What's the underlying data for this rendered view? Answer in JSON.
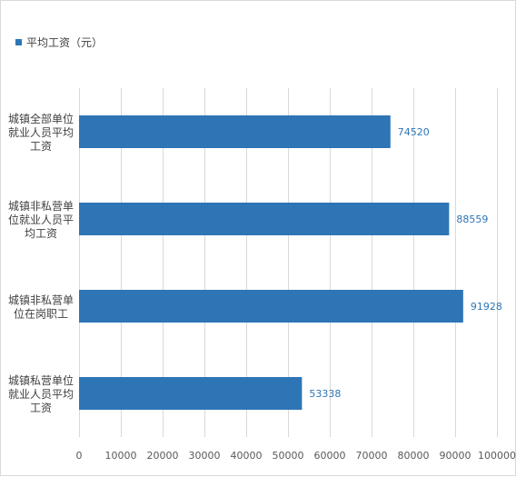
{
  "chart_data": {
    "type": "bar",
    "orientation": "horizontal",
    "categories": [
      [
        "城镇全部单位",
        "就业人员平均",
        "工资"
      ],
      [
        "城镇非私营单",
        "位就业人员平",
        "均工资"
      ],
      [
        "城镇非私营单",
        "位在岗职工"
      ],
      [
        "城镇私营单位",
        "就业人员平均",
        "工资"
      ]
    ],
    "series": [
      {
        "name": "平均工资（元）",
        "values": [
          74520,
          88559,
          91928,
          53338
        ]
      }
    ],
    "data_labels": [
      "74520",
      "88559",
      "91928",
      "53338"
    ],
    "x_ticks": [
      0,
      10000,
      20000,
      30000,
      40000,
      50000,
      60000,
      70000,
      80000,
      90000,
      100000
    ],
    "xlim": [
      0,
      100000
    ],
    "grid": "vertical",
    "legend_position": "top-left",
    "colors": {
      "bar": "#2e75b6",
      "label": "#2e75b6",
      "grid": "#d9d9d9",
      "text": "#404040",
      "axis_text": "#595959"
    }
  }
}
